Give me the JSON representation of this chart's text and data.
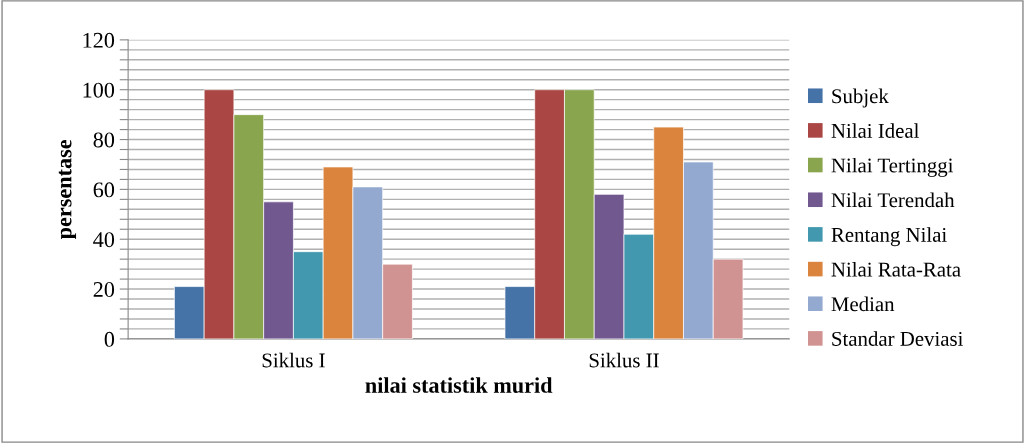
{
  "chart_data": {
    "type": "bar",
    "xlabel": "nilai statistik murid",
    "ylabel": "persentase",
    "categories": [
      "Siklus I",
      "Siklus II"
    ],
    "series": [
      {
        "name": "Subjek",
        "color": "#4572a7",
        "values": [
          21,
          21
        ]
      },
      {
        "name": "Nilai Ideal",
        "color": "#aa4643",
        "values": [
          100,
          100
        ]
      },
      {
        "name": "Nilai Tertinggi",
        "color": "#89a54e",
        "values": [
          90,
          100
        ]
      },
      {
        "name": "Nilai Terendah",
        "color": "#71588f",
        "values": [
          55,
          58
        ]
      },
      {
        "name": "Rentang Nilai",
        "color": "#4198af",
        "values": [
          35,
          42
        ]
      },
      {
        "name": "Nilai Rata-Rata",
        "color": "#db843d",
        "values": [
          69,
          85
        ]
      },
      {
        "name": "Median",
        "color": "#93a9cf",
        "values": [
          61,
          71
        ]
      },
      {
        "name": "Standar Deviasi",
        "color": "#d19392",
        "values": [
          30,
          32
        ]
      }
    ],
    "ylim": [
      0,
      120
    ],
    "yticks": [
      0,
      {
        "value": 4,
        "label": null
      },
      {
        "value": 8,
        "label": null
      },
      {
        "value": 12,
        "label": null
      },
      {
        "value": 16,
        "label": null
      },
      20,
      {
        "value": 24,
        "label": null
      },
      {
        "value": 28,
        "label": null
      },
      {
        "value": 32,
        "label": null
      },
      {
        "value": 36,
        "label": null
      },
      40,
      {
        "value": 44,
        "label": null
      },
      {
        "value": 48,
        "label": null
      },
      {
        "value": 52,
        "label": null
      },
      {
        "value": 56,
        "label": null
      },
      60,
      {
        "value": 64,
        "label": null
      },
      {
        "value": 68,
        "label": null
      },
      {
        "value": 72,
        "label": null
      },
      {
        "value": 76,
        "label": null
      },
      80,
      {
        "value": 84,
        "label": null
      },
      {
        "value": 88,
        "label": null
      },
      {
        "value": 92,
        "label": null
      },
      {
        "value": 96,
        "label": null
      },
      100,
      {
        "value": 104,
        "label": null
      },
      {
        "value": 108,
        "label": null
      },
      {
        "value": 112,
        "label": null
      },
      {
        "value": 116,
        "label": null
      },
      120
    ],
    "grid": "y",
    "legend": "right"
  }
}
